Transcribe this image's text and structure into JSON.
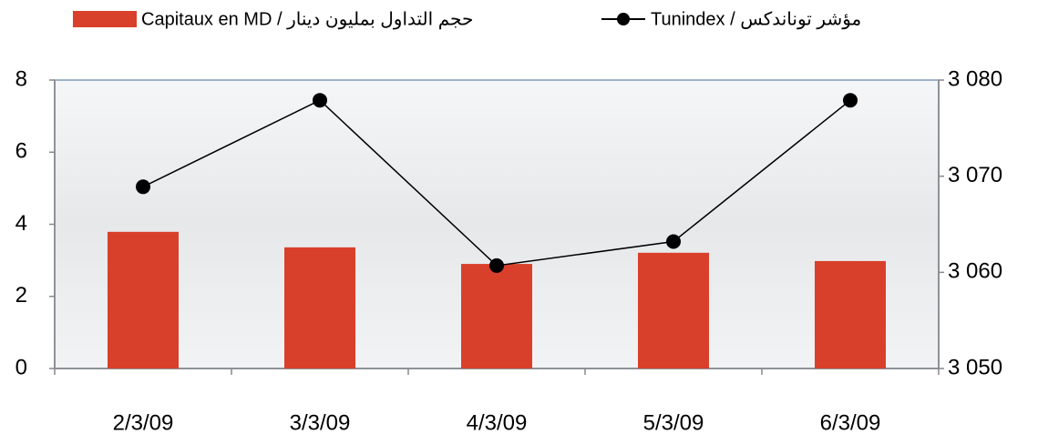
{
  "chart_data": {
    "type": "bar_line",
    "categories": [
      "2/3/09",
      "3/3/09",
      "4/3/09",
      "5/3/09",
      "6/3/09"
    ],
    "series": [
      {
        "name": "Capitaux en MD / حجم التداول بمليون دينار",
        "color": "#d9402b",
        "type": "bar",
        "values": [
          3.79,
          3.36,
          2.9,
          3.21,
          2.98
        ]
      },
      {
        "name": "Tunindex / مؤشر توناندكس",
        "color": "#000000",
        "type": "line",
        "axis": "y2",
        "values": [
          3068.9,
          3077.9,
          3060.7,
          3063.2,
          3077.9
        ]
      }
    ],
    "ylim": [
      0,
      8
    ],
    "yticks": [
      0,
      2,
      4,
      6,
      8
    ],
    "y2lim": [
      3050,
      3080
    ],
    "y2ticks": [
      {
        "value": 3050,
        "label": "3 050"
      },
      {
        "value": 3060,
        "label": "3 060"
      },
      {
        "value": 3070,
        "label": "3 070"
      },
      {
        "value": 3080,
        "label": "3 080"
      }
    ]
  }
}
